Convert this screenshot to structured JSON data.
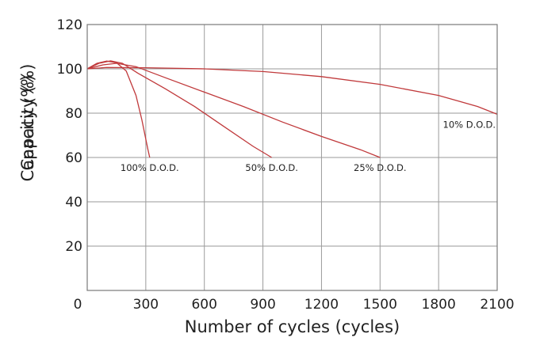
{
  "chart_data": {
    "type": "line",
    "xlabel": "Number of cycles (cycles)",
    "ylabel": "Capacity (%)",
    "ylabel_overlap": "Capacity (%)",
    "xlim": [
      0,
      2100
    ],
    "ylim": [
      0,
      120
    ],
    "x_ticks": [
      "0",
      "300",
      "600",
      "900",
      "1200",
      "1500",
      "1800",
      "2100"
    ],
    "y_ticks": [
      "20",
      "40",
      "60",
      "80",
      "100",
      "120"
    ],
    "grid": true,
    "line_color": "#c0393b",
    "series": [
      {
        "label": "100% D.O.D.",
        "points": [
          [
            0,
            100
          ],
          [
            50,
            102.5
          ],
          [
            100,
            103.5
          ],
          [
            150,
            102.8
          ],
          [
            200,
            99
          ],
          [
            250,
            88
          ],
          [
            280,
            77
          ],
          [
            310,
            64
          ],
          [
            320,
            60
          ]
        ]
      },
      {
        "label": "50% D.O.D.",
        "points": [
          [
            0,
            100
          ],
          [
            60,
            102.5
          ],
          [
            120,
            103.6
          ],
          [
            180,
            102.5
          ],
          [
            260,
            98
          ],
          [
            400,
            91
          ],
          [
            550,
            83
          ],
          [
            700,
            74
          ],
          [
            850,
            65
          ],
          [
            945,
            60
          ]
        ]
      },
      {
        "label": "25% D.O.D.",
        "points": [
          [
            0,
            100
          ],
          [
            80,
            101.8
          ],
          [
            150,
            102.5
          ],
          [
            250,
            101
          ],
          [
            400,
            96
          ],
          [
            600,
            89.5
          ],
          [
            800,
            83
          ],
          [
            1000,
            76
          ],
          [
            1200,
            69.5
          ],
          [
            1400,
            63.5
          ],
          [
            1500,
            60
          ]
        ]
      },
      {
        "label": "10% D.O.D.",
        "points": [
          [
            0,
            100
          ],
          [
            100,
            100.6
          ],
          [
            300,
            100.5
          ],
          [
            600,
            100
          ],
          [
            900,
            98.8
          ],
          [
            1200,
            96.5
          ],
          [
            1500,
            93
          ],
          [
            1800,
            88
          ],
          [
            2000,
            83
          ],
          [
            2100,
            79.5
          ]
        ]
      }
    ]
  }
}
